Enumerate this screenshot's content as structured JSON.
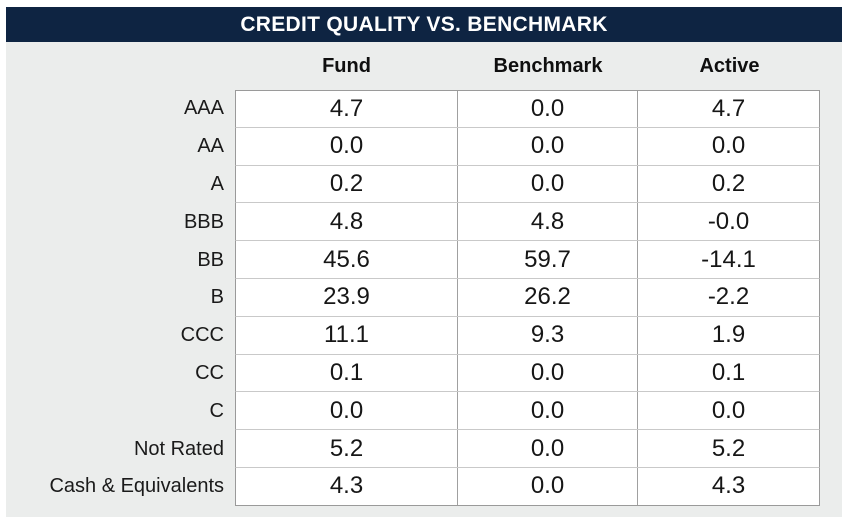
{
  "title": "CREDIT QUALITY VS. BENCHMARK",
  "colors": {
    "title_bg": "#0e2442",
    "title_text": "#ffffff",
    "panel_bg": "#ebedec",
    "grid_border": "#9a9a9a"
  },
  "table": {
    "columns": [
      "Fund",
      "Benchmark",
      "Active"
    ],
    "rows": [
      {
        "label": "AAA",
        "values": [
          "4.7",
          "0.0",
          "4.7"
        ]
      },
      {
        "label": "AA",
        "values": [
          "0.0",
          "0.0",
          "0.0"
        ]
      },
      {
        "label": "A",
        "values": [
          "0.2",
          "0.0",
          "0.2"
        ]
      },
      {
        "label": "BBB",
        "values": [
          "4.8",
          "4.8",
          "-0.0"
        ]
      },
      {
        "label": "BB",
        "values": [
          "45.6",
          "59.7",
          "-14.1"
        ]
      },
      {
        "label": "B",
        "values": [
          "23.9",
          "26.2",
          "-2.2"
        ]
      },
      {
        "label": "CCC",
        "values": [
          "11.1",
          "9.3",
          "1.9"
        ]
      },
      {
        "label": "CC",
        "values": [
          "0.1",
          "0.0",
          "0.1"
        ]
      },
      {
        "label": "C",
        "values": [
          "0.0",
          "0.0",
          "0.0"
        ]
      },
      {
        "label": "Not Rated",
        "values": [
          "5.2",
          "0.0",
          "5.2"
        ]
      },
      {
        "label": "Cash & Equivalents",
        "values": [
          "4.3",
          "0.0",
          "4.3"
        ]
      }
    ]
  },
  "chart_data": {
    "type": "table",
    "title": "CREDIT QUALITY VS. BENCHMARK",
    "categories": [
      "AAA",
      "AA",
      "A",
      "BBB",
      "BB",
      "B",
      "CCC",
      "CC",
      "C",
      "Not Rated",
      "Cash & Equivalents"
    ],
    "series": [
      {
        "name": "Fund",
        "values": [
          4.7,
          0.0,
          0.2,
          4.8,
          45.6,
          23.9,
          11.1,
          0.1,
          0.0,
          5.2,
          4.3
        ]
      },
      {
        "name": "Benchmark",
        "values": [
          0.0,
          0.0,
          0.0,
          4.8,
          59.7,
          26.2,
          9.3,
          0.0,
          0.0,
          0.0,
          0.0
        ]
      },
      {
        "name": "Active",
        "values": [
          4.7,
          0.0,
          0.2,
          -0.0,
          -14.1,
          -2.2,
          1.9,
          0.1,
          0.0,
          5.2,
          4.3
        ]
      }
    ]
  }
}
